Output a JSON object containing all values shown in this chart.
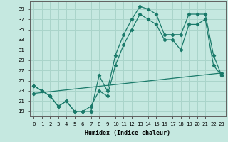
{
  "xlabel": "Humidex (Indice chaleur)",
  "bg_color": "#c5e8e0",
  "grid_color": "#aad4ca",
  "line_color": "#1a7a6a",
  "yticks": [
    19,
    21,
    23,
    25,
    27,
    29,
    31,
    33,
    35,
    37,
    39
  ],
  "xticks": [
    0,
    1,
    2,
    3,
    4,
    5,
    6,
    7,
    8,
    9,
    10,
    11,
    12,
    13,
    14,
    15,
    16,
    17,
    18,
    19,
    20,
    21,
    22,
    23
  ],
  "ylim": [
    18.0,
    40.5
  ],
  "xlim": [
    -0.5,
    23.5
  ],
  "series1_x": [
    0,
    1,
    2,
    3,
    4,
    5,
    6,
    7,
    8,
    9,
    10,
    11,
    12,
    13,
    14,
    15,
    16,
    17,
    18,
    19,
    20,
    21,
    22,
    23
  ],
  "series1_y": [
    24,
    23,
    22,
    20,
    21,
    19,
    19,
    19,
    26,
    23,
    30,
    34,
    37,
    39.5,
    39,
    38,
    34,
    34,
    34,
    38,
    38,
    38,
    30,
    26
  ],
  "series2_x": [
    0,
    1,
    2,
    3,
    4,
    5,
    6,
    7,
    8,
    9,
    10,
    11,
    12,
    13,
    14,
    15,
    16,
    17,
    18,
    19,
    20,
    21,
    22,
    23
  ],
  "series2_y": [
    24,
    23,
    22,
    20,
    21,
    19,
    19,
    20,
    23,
    22,
    28,
    32,
    35,
    38,
    37,
    36,
    33,
    33,
    31,
    36,
    36,
    37,
    28,
    26
  ],
  "series3_x": [
    0,
    23
  ],
  "series3_y": [
    22.5,
    26.5
  ]
}
